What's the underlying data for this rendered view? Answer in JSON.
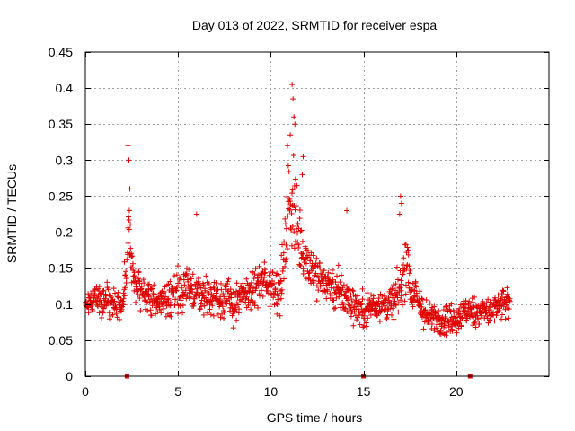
{
  "chart_data": {
    "type": "scatter",
    "title": "Day 013 of 2022, SRMTID for receiver espa",
    "xlabel": "GPS time / hours",
    "ylabel": "SRMTID / TECUs",
    "xlim": [
      0,
      25
    ],
    "ylim": [
      0,
      0.45
    ],
    "grid": true,
    "marker": "plus",
    "color": "#e00000",
    "x_ticks": [
      0,
      5,
      10,
      15,
      20
    ],
    "x_tick_labels": [
      "0",
      "5",
      "10",
      "15",
      "20"
    ],
    "y_ticks": [
      0,
      0.05,
      0.1,
      0.15,
      0.2,
      0.25,
      0.3,
      0.35,
      0.4,
      0.45
    ],
    "y_tick_labels": [
      "0",
      "0.05",
      "0.1",
      "0.15",
      "0.2",
      "0.25",
      "0.3",
      "0.35",
      "0.4",
      "0.45"
    ],
    "markers_on_zero": [
      2.25,
      15.0,
      20.75
    ],
    "series": [
      {
        "name": "SRMTID",
        "envelope": {
          "x": [
            0,
            0.5,
            1,
            1.5,
            2,
            2.2,
            2.35,
            2.5,
            3,
            3.5,
            4,
            4.5,
            5,
            5.5,
            6,
            6.5,
            7,
            7.5,
            8,
            8.5,
            9,
            9.5,
            10,
            10.5,
            10.8,
            11,
            11.2,
            11.5,
            12,
            12.5,
            13,
            13.5,
            14,
            14.5,
            15,
            15.5,
            16,
            16.5,
            17,
            17.3,
            17.6,
            18,
            18.5,
            19,
            19.5,
            20,
            20.5,
            21,
            21.5,
            22,
            22.5,
            22.9
          ],
          "center": [
            0.1,
            0.11,
            0.11,
            0.1,
            0.1,
            0.14,
            0.22,
            0.14,
            0.12,
            0.11,
            0.1,
            0.11,
            0.12,
            0.12,
            0.12,
            0.11,
            0.11,
            0.11,
            0.1,
            0.11,
            0.12,
            0.13,
            0.13,
            0.12,
            0.18,
            0.25,
            0.24,
            0.19,
            0.16,
            0.14,
            0.13,
            0.12,
            0.11,
            0.1,
            0.09,
            0.1,
            0.1,
            0.1,
            0.12,
            0.17,
            0.12,
            0.1,
            0.08,
            0.08,
            0.08,
            0.08,
            0.09,
            0.09,
            0.09,
            0.09,
            0.1,
            0.1
          ],
          "spread": [
            0.035,
            0.04,
            0.04,
            0.035,
            0.03,
            0.06,
            0.1,
            0.06,
            0.04,
            0.04,
            0.04,
            0.045,
            0.045,
            0.045,
            0.045,
            0.04,
            0.045,
            0.045,
            0.045,
            0.045,
            0.045,
            0.05,
            0.05,
            0.05,
            0.09,
            0.15,
            0.13,
            0.08,
            0.06,
            0.05,
            0.05,
            0.05,
            0.05,
            0.04,
            0.04,
            0.04,
            0.04,
            0.04,
            0.05,
            0.08,
            0.05,
            0.04,
            0.035,
            0.035,
            0.035,
            0.035,
            0.035,
            0.035,
            0.035,
            0.035,
            0.04,
            0.04
          ]
        },
        "point_count": 1400,
        "peaks": [
          {
            "x": 2.3,
            "y": 0.32
          },
          {
            "x": 2.35,
            "y": 0.3
          },
          {
            "x": 2.4,
            "y": 0.26
          },
          {
            "x": 6.0,
            "y": 0.225
          },
          {
            "x": 10.9,
            "y": 0.32
          },
          {
            "x": 11.05,
            "y": 0.335
          },
          {
            "x": 11.15,
            "y": 0.405
          },
          {
            "x": 11.2,
            "y": 0.385
          },
          {
            "x": 11.25,
            "y": 0.36
          },
          {
            "x": 11.3,
            "y": 0.35
          },
          {
            "x": 11.75,
            "y": 0.305
          },
          {
            "x": 11.7,
            "y": 0.28
          },
          {
            "x": 14.1,
            "y": 0.23
          },
          {
            "x": 17.0,
            "y": 0.25
          },
          {
            "x": 17.05,
            "y": 0.24
          },
          {
            "x": 16.95,
            "y": 0.225
          }
        ]
      }
    ]
  }
}
